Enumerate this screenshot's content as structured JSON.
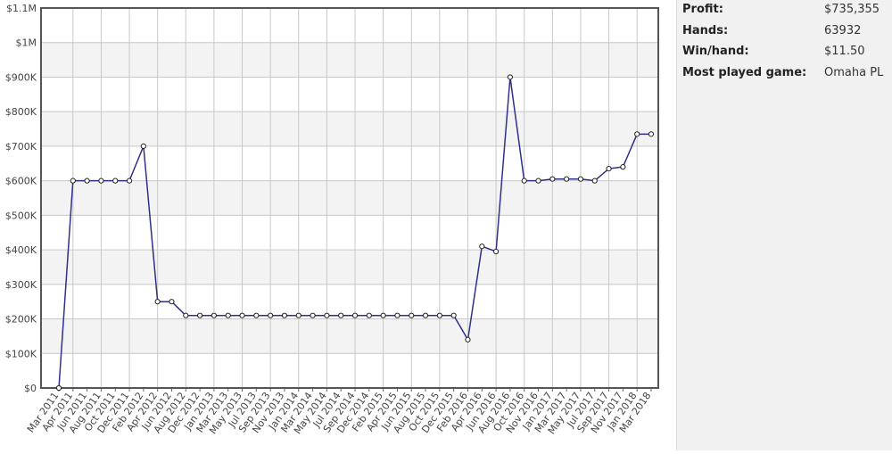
{
  "chart_data": {
    "type": "line",
    "categories": [
      "Mar 2011",
      "Apr 2011",
      "Jun 2011",
      "Aug 2011",
      "Oct 2011",
      "Dec 2011",
      "Feb 2012",
      "Apr 2012",
      "Jun 2012",
      "Aug 2012",
      "Dec 2012",
      "Jan 2013",
      "Mar 2013",
      "May 2013",
      "Jul 2013",
      "Sep 2013",
      "Nov 2013",
      "Jan 2014",
      "Mar 2014",
      "May 2014",
      "Jul 2014",
      "Sep 2014",
      "Dec 2014",
      "Feb 2015",
      "Apr 2015",
      "Jun 2015",
      "Aug 2015",
      "Oct 2015",
      "Dec 2015",
      "Feb 2016",
      "Apr 2016",
      "Jun 2016",
      "Aug 2016",
      "Oct 2016",
      "Nov 2016",
      "Jan 2017",
      "Mar 2017",
      "May 2017",
      "Jul 2017",
      "Sep 2017",
      "Nov 2017",
      "Jan 2018",
      "Mar 2018"
    ],
    "values": [
      0,
      600000,
      600000,
      600000,
      600000,
      600000,
      700000,
      250000,
      250000,
      210000,
      210000,
      210000,
      210000,
      210000,
      210000,
      210000,
      210000,
      210000,
      210000,
      210000,
      210000,
      210000,
      210000,
      210000,
      210000,
      210000,
      210000,
      210000,
      210000,
      140000,
      410000,
      395000,
      900000,
      600000,
      600000,
      605000,
      605000,
      605000,
      600000,
      635000,
      640000,
      735000,
      735000
    ],
    "color": "#2f2f8c",
    "ylim": [
      0,
      1100000
    ],
    "yticks": [
      {
        "value": 0,
        "label": "$0"
      },
      {
        "value": 100000,
        "label": "$100K"
      },
      {
        "value": 200000,
        "label": "$200K"
      },
      {
        "value": 300000,
        "label": "$300K"
      },
      {
        "value": 400000,
        "label": "$400K"
      },
      {
        "value": 500000,
        "label": "$500K"
      },
      {
        "value": 600000,
        "label": "$600K"
      },
      {
        "value": 700000,
        "label": "$700K"
      },
      {
        "value": 800000,
        "label": "$800K"
      },
      {
        "value": 900000,
        "label": "$900K"
      },
      {
        "value": 1000000,
        "label": "$1M"
      },
      {
        "value": 1100000,
        "label": "$1.1M"
      }
    ],
    "grid": true
  },
  "stats": [
    {
      "label": "Profit:",
      "value": "$735,355"
    },
    {
      "label": "Hands:",
      "value": "63932"
    },
    {
      "label": "Win/hand:",
      "value": "$11.50"
    },
    {
      "label": "Most played game:",
      "value": "Omaha PL"
    }
  ]
}
